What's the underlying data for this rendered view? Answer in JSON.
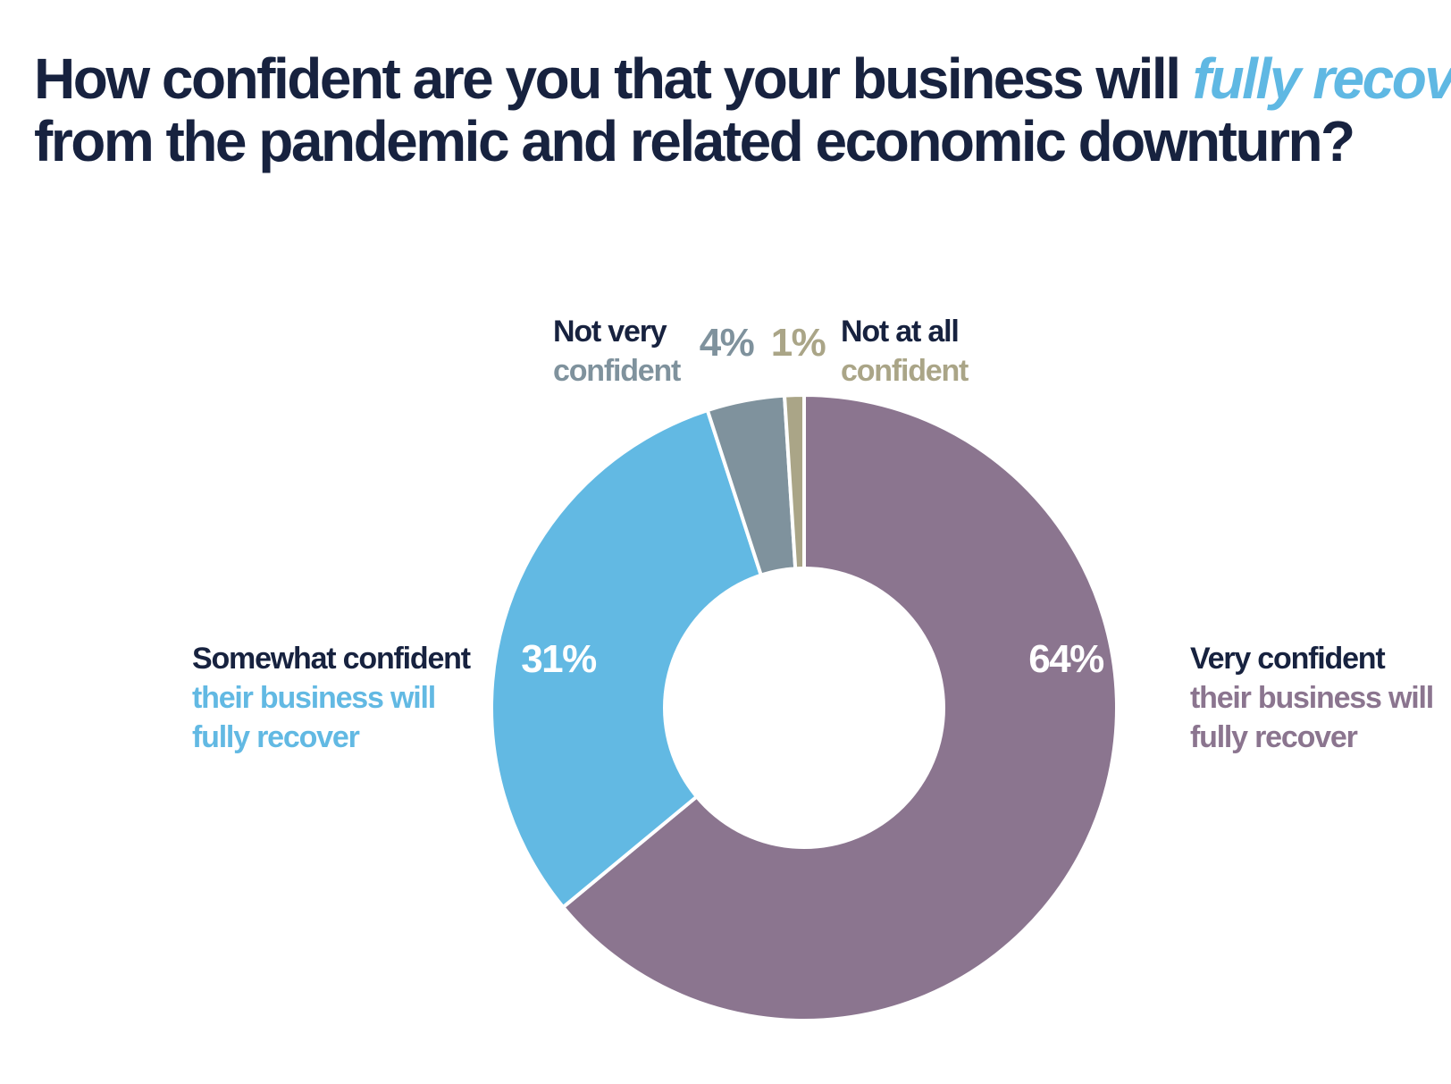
{
  "title": {
    "line1_before": "How confident are you that your business will ",
    "line1_accent": "fully recover",
    "line2": "from the pandemic and related economic downturn?"
  },
  "colors": {
    "navy": "#17223f",
    "accent": "#5fb8e3",
    "very_confident": "#8b758f",
    "somewhat_confident": "#62b9e3",
    "not_very_confident": "#7f929d",
    "not_at_all_confident": "#aaa587"
  },
  "chart_data": {
    "type": "pie",
    "donut": true,
    "start": "12 o'clock, clockwise",
    "slices": [
      {
        "label": "Very confident",
        "label_lines": [
          "Very confident",
          "their business will",
          "fully recover"
        ],
        "value": 64,
        "value_label": "64%",
        "color": "#8b758f"
      },
      {
        "label": "Somewhat confident",
        "label_lines": [
          "Somewhat confident",
          "their business will",
          "fully recover"
        ],
        "value": 31,
        "value_label": "31%",
        "color": "#62b9e3"
      },
      {
        "label": "Not very confident",
        "label_lines": [
          "Not very",
          "confident"
        ],
        "value": 4,
        "value_label": "4%",
        "color": "#7f929d"
      },
      {
        "label": "Not at all confident",
        "label_lines": [
          "Not at all",
          "confident"
        ],
        "value": 1,
        "value_label": "1%",
        "color": "#aaa587"
      }
    ]
  }
}
